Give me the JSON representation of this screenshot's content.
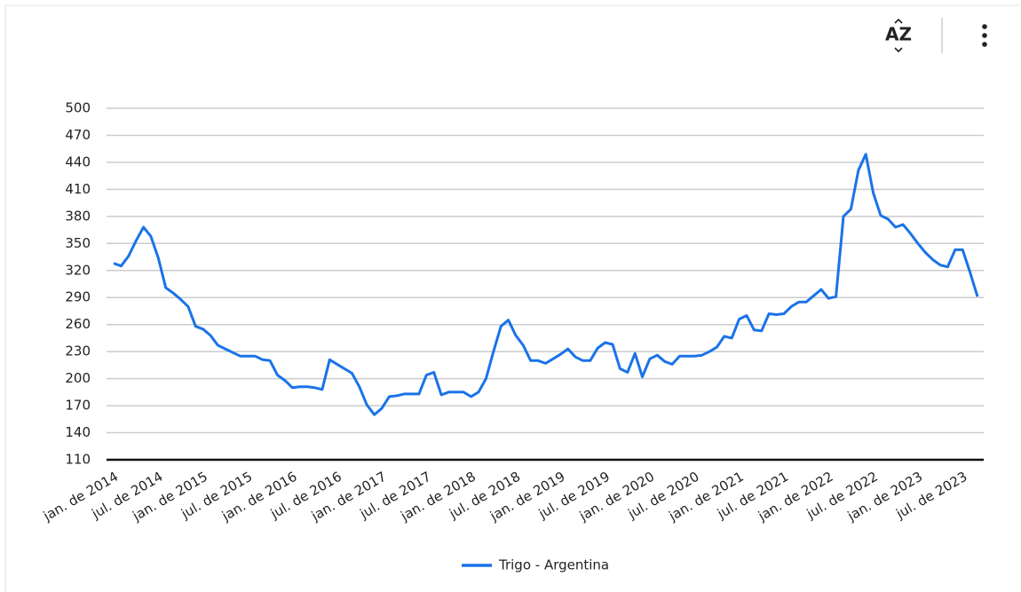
{
  "toolbar": {
    "sort_label": "AZ"
  },
  "chart_data": {
    "type": "line",
    "categories": [
      "jan. de 2014",
      null,
      null,
      null,
      null,
      null,
      "jul. de 2014",
      null,
      null,
      null,
      null,
      null,
      "jan. de 2015",
      null,
      null,
      null,
      null,
      null,
      "jul. de 2015",
      null,
      null,
      null,
      null,
      null,
      "jan. de 2016",
      null,
      null,
      null,
      null,
      null,
      "jul. de 2016",
      null,
      null,
      null,
      null,
      null,
      "jan. de 2017",
      null,
      null,
      null,
      null,
      null,
      "jul. de 2017",
      null,
      null,
      null,
      null,
      null,
      "jan. de 2018",
      null,
      null,
      null,
      null,
      null,
      "jul. de 2018",
      null,
      null,
      null,
      null,
      null,
      "jan. de 2019",
      null,
      null,
      null,
      null,
      null,
      "jul. de 2019",
      null,
      null,
      null,
      null,
      null,
      "jan. de 2020",
      null,
      null,
      null,
      null,
      null,
      "jul. de 2020",
      null,
      null,
      null,
      null,
      null,
      "jan. de 2021",
      null,
      null,
      null,
      null,
      null,
      "jul. de 2021",
      null,
      null,
      null,
      null,
      null,
      "jan. de 2022",
      null,
      null,
      null,
      null,
      null,
      "jul. de 2022",
      null,
      null,
      null,
      null,
      null,
      "jan. de 2023",
      null,
      null,
      null,
      null,
      null,
      "jul. de 2023",
      null,
      null
    ],
    "series": [
      {
        "name": "Trigo - Argentina",
        "color": "#1a73e8",
        "values": [
          328,
          325,
          336,
          353,
          368,
          358,
          334,
          301,
          295,
          288,
          280,
          258,
          255,
          248,
          237,
          233,
          229,
          225,
          225,
          225,
          221,
          220,
          204,
          198,
          190,
          191,
          191,
          190,
          188,
          221,
          216,
          211,
          206,
          191,
          171,
          160,
          167,
          180,
          181,
          183,
          183,
          183,
          204,
          207,
          182,
          185,
          185,
          185,
          180,
          185,
          200,
          230,
          258,
          265,
          248,
          237,
          220,
          220,
          217,
          222,
          227,
          233,
          224,
          220,
          220,
          234,
          240,
          238,
          211,
          207,
          228,
          202,
          222,
          226,
          219,
          216,
          225,
          225,
          225,
          226,
          230,
          235,
          247,
          245,
          266,
          270,
          254,
          253,
          272,
          271,
          272,
          280,
          285,
          285,
          292,
          299,
          289,
          291,
          380,
          388,
          431,
          449,
          406,
          381,
          377,
          368,
          371,
          361,
          350,
          340,
          332,
          326,
          324,
          343,
          343,
          318,
          291
        ]
      }
    ],
    "ylim": [
      110,
      500
    ],
    "yticks": [
      110,
      140,
      170,
      200,
      230,
      260,
      290,
      320,
      350,
      380,
      410,
      440,
      470,
      500
    ],
    "grid": true,
    "legend": "bottom"
  }
}
